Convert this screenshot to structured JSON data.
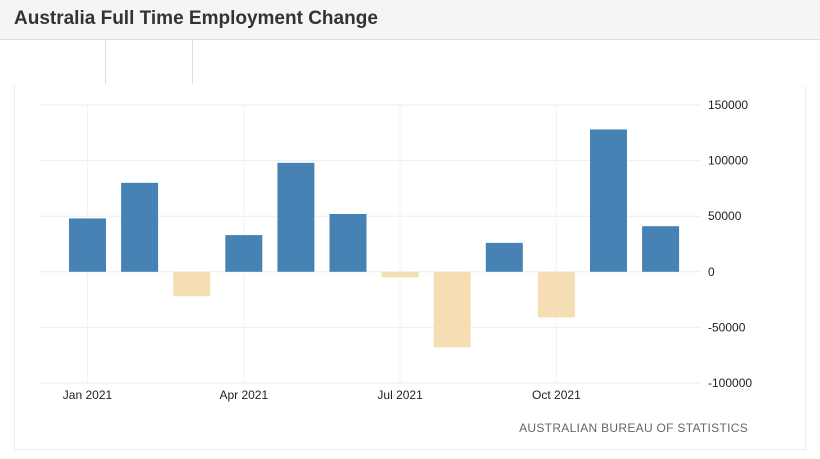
{
  "header": {
    "title": "Australia Full Time Employment Change"
  },
  "chart_data": {
    "type": "bar",
    "categories": [
      "Jan 2021",
      "Feb 2021",
      "Mar 2021",
      "Apr 2021",
      "May 2021",
      "Jun 2021",
      "Jul 2021",
      "Aug 2021",
      "Sep 2021",
      "Oct 2021",
      "Nov 2021",
      "Dec 2021"
    ],
    "values": [
      48000,
      80000,
      -22000,
      33000,
      98000,
      52000,
      -5000,
      -68000,
      26000,
      -41000,
      128000,
      41000
    ],
    "x_tick_labels": [
      "Jan 2021",
      "Apr 2021",
      "Jul 2021",
      "Oct 2021"
    ],
    "y_ticks": [
      150000,
      100000,
      50000,
      0,
      -50000,
      -100000
    ],
    "y_tick_labels": [
      "150000",
      "100000",
      "50000",
      "0",
      "-50000",
      "-100000"
    ],
    "ylim": [
      -100000,
      150000
    ],
    "y_axis_side": "right",
    "grid": true,
    "colors": {
      "positive": "#4682b4",
      "negative": "#f5deb3"
    },
    "source": "AUSTRALIAN BUREAU OF STATISTICS"
  }
}
